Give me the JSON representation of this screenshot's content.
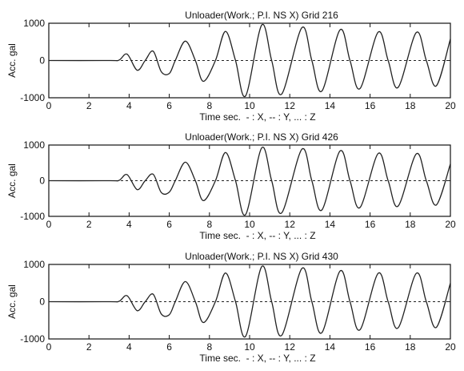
{
  "chart_data": [
    {
      "type": "line",
      "title": "Unloader(Work.; P.I. NS X)    Grid 216",
      "xlabel": "Time sec.  - : X, -- : Y, ... : Z",
      "ylabel": "Acc. gal",
      "xlim": [
        0,
        20
      ],
      "ylim": [
        -1000,
        1000
      ],
      "xticks": [
        "0",
        "2",
        "4",
        "6",
        "8",
        "10",
        "12",
        "14",
        "16",
        "18",
        "20"
      ],
      "yticks": [
        "1000",
        "0",
        "-1000"
      ],
      "series": [
        {
          "line_style": "solid",
          "x": [
            0,
            3,
            3.5,
            3.9,
            4.4,
            4.8,
            5.2,
            5.6,
            6.0,
            6.3,
            6.8,
            7.3,
            7.7,
            8.3,
            8.8,
            9.3,
            9.8,
            10.6,
            11.1,
            11.6,
            12.6,
            13.1,
            13.6,
            14.5,
            15.0,
            15.5,
            16.4,
            16.9,
            17.4,
            18.3,
            18.8,
            19.3,
            20.0
          ],
          "y": [
            0,
            0,
            10,
            170,
            -260,
            0,
            250,
            -300,
            -350,
            0,
            520,
            0,
            -560,
            0,
            780,
            0,
            -950,
            950,
            0,
            -900,
            880,
            0,
            -820,
            820,
            0,
            -750,
            760,
            0,
            -720,
            750,
            0,
            -680,
            580
          ]
        },
        {
          "line_style": "dashed",
          "x": [
            0,
            20
          ],
          "y": [
            0,
            0
          ]
        }
      ]
    },
    {
      "type": "line",
      "title": "Unloader(Work.; P.I. NS X)    Grid 426",
      "xlabel": "Time sec.  - : X, -- : Y, ... : Z",
      "ylabel": "Acc. gal",
      "xlim": [
        0,
        20
      ],
      "ylim": [
        -1000,
        1000
      ],
      "xticks": [
        "0",
        "2",
        "4",
        "6",
        "8",
        "10",
        "12",
        "14",
        "16",
        "18",
        "20"
      ],
      "yticks": [
        "1000",
        "0",
        "-1000"
      ],
      "series": [
        {
          "line_style": "solid",
          "x": [
            0,
            3,
            3.5,
            3.9,
            4.4,
            4.8,
            5.2,
            5.6,
            6.0,
            6.3,
            6.8,
            7.3,
            7.7,
            8.3,
            8.8,
            9.3,
            9.8,
            10.6,
            11.1,
            11.6,
            12.6,
            13.1,
            13.6,
            14.5,
            15.0,
            15.5,
            16.4,
            16.9,
            17.4,
            18.3,
            18.8,
            19.3,
            20.0
          ],
          "y": [
            0,
            0,
            10,
            170,
            -250,
            0,
            180,
            -330,
            -320,
            0,
            520,
            0,
            -560,
            0,
            790,
            0,
            -950,
            920,
            0,
            -900,
            880,
            0,
            -820,
            830,
            0,
            -750,
            760,
            0,
            -710,
            750,
            0,
            -680,
            470
          ]
        },
        {
          "line_style": "dashed",
          "x": [
            0,
            20
          ],
          "y": [
            0,
            0
          ]
        }
      ]
    },
    {
      "type": "line",
      "title": "Unloader(Work.; P.I. NS X)    Grid 430",
      "xlabel": "Time sec.  - : X, -- : Y, ... : Z",
      "ylabel": "Acc. gal",
      "xlim": [
        0,
        20
      ],
      "ylim": [
        -1000,
        1000
      ],
      "xticks": [
        "0",
        "2",
        "4",
        "6",
        "8",
        "10",
        "12",
        "14",
        "16",
        "18",
        "20"
      ],
      "yticks": [
        "1000",
        "0",
        "-1000"
      ],
      "series": [
        {
          "line_style": "solid",
          "x": [
            0,
            3,
            3.5,
            3.9,
            4.4,
            4.8,
            5.2,
            5.6,
            6.0,
            6.3,
            6.8,
            7.3,
            7.7,
            8.3,
            8.8,
            9.3,
            9.8,
            10.6,
            11.1,
            11.6,
            12.6,
            13.1,
            13.6,
            14.5,
            15.0,
            15.5,
            16.4,
            16.9,
            17.4,
            18.3,
            18.8,
            19.3,
            20.0
          ],
          "y": [
            0,
            0,
            10,
            160,
            -240,
            0,
            200,
            -330,
            -350,
            0,
            540,
            0,
            -560,
            0,
            770,
            0,
            -930,
            940,
            0,
            -900,
            890,
            0,
            -830,
            820,
            0,
            -750,
            760,
            0,
            -700,
            760,
            0,
            -690,
            500
          ]
        },
        {
          "line_style": "dashed",
          "x": [
            0,
            20
          ],
          "y": [
            0,
            0
          ]
        }
      ]
    }
  ]
}
